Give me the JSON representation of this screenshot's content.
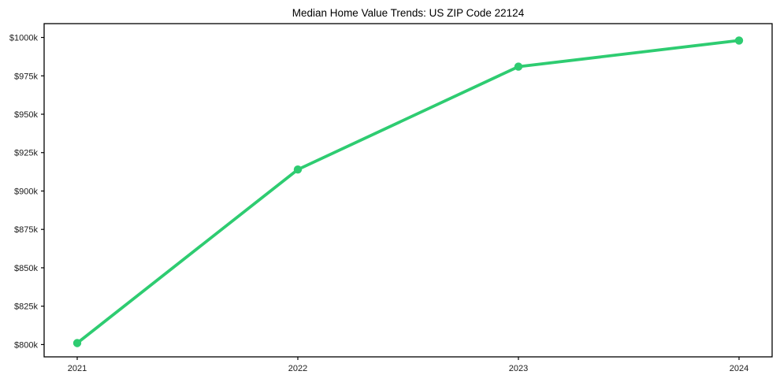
{
  "figure": {
    "background": "#ffffff"
  },
  "chart_data": {
    "type": "line",
    "title": "Median Home Value Trends: US ZIP Code 22124",
    "xlabel": "",
    "ylabel": "",
    "x": [
      2021,
      2022,
      2023,
      2024
    ],
    "x_tick_labels": [
      "2021",
      "2022",
      "2023",
      "2024"
    ],
    "values": [
      801,
      914,
      981,
      998
    ],
    "y_tick_values": [
      800,
      825,
      850,
      875,
      900,
      925,
      950,
      975,
      1000
    ],
    "y_tick_labels": [
      "$800k",
      "$825k",
      "$850k",
      "$875k",
      "$900k",
      "$925k",
      "$950k",
      "$975k",
      "$1000k"
    ],
    "xlim": [
      2020.85,
      2024.15
    ],
    "ylim": [
      792,
      1009
    ],
    "grid": false,
    "legend_position": "none",
    "line_color": "#2ecc71",
    "marker": "circle",
    "frame_color": "#000000",
    "tick_label_color": "#1a1a1a",
    "title_color": "#000000"
  }
}
